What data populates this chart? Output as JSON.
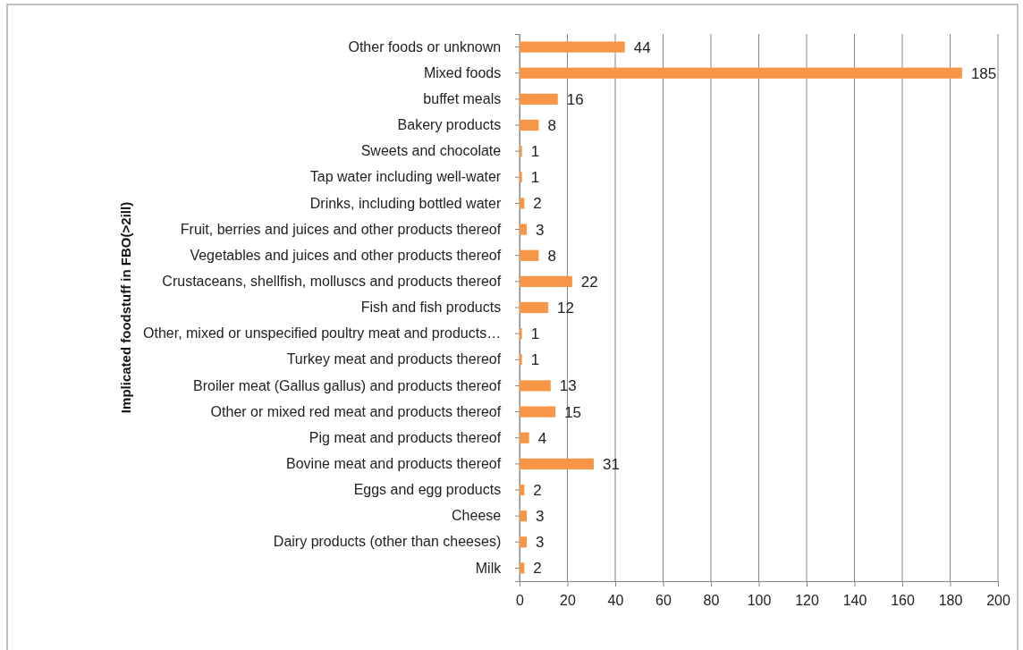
{
  "chart_data": {
    "type": "bar",
    "orientation": "horizontal",
    "ylabel": "Implicated foodstuff in FBO(>2ill)",
    "categories": [
      "Other foods or unknown",
      "Mixed foods",
      "buffet meals",
      "Bakery products",
      "Sweets and chocolate",
      "Tap water including well-water",
      "Drinks, including bottled water",
      "Fruit, berries and juices and other products thereof",
      "Vegetables and juices and other products thereof",
      "Crustaceans, shellfish, molluscs and products thereof",
      "Fish and fish products",
      "Other, mixed or unspecified poultry meat and products…",
      "Turkey meat and products thereof",
      "Broiler meat (Gallus gallus) and products thereof",
      "Other or mixed red meat and products thereof",
      "Pig meat and products thereof",
      "Bovine meat and products thereof",
      "Eggs and egg products",
      "Cheese",
      "Dairy products (other than cheeses)",
      "Milk"
    ],
    "values": [
      44,
      185,
      16,
      8,
      1,
      1,
      2,
      3,
      8,
      22,
      12,
      1,
      1,
      13,
      15,
      4,
      31,
      2,
      3,
      3,
      2
    ],
    "color": "#f79646",
    "xlim": [
      0,
      200
    ],
    "xticks": [
      0,
      20,
      40,
      60,
      80,
      100,
      120,
      140,
      160,
      180,
      200
    ],
    "grid": "x",
    "data_labels": true
  }
}
